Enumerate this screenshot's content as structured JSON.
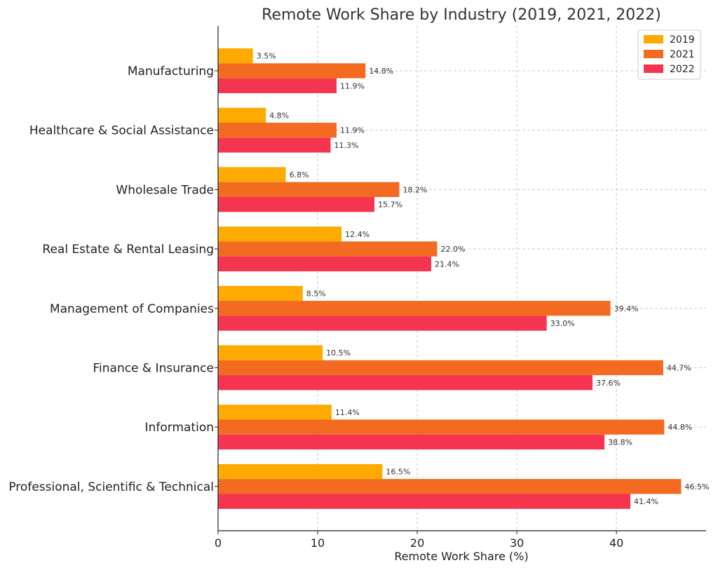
{
  "chart_data": {
    "type": "bar",
    "orientation": "horizontal",
    "title": "Remote Work Share by Industry (2019, 2021, 2022)",
    "xlabel": "Remote Work Share (%)",
    "ylabel": "",
    "xlim": [
      0,
      49
    ],
    "xticks": [
      "0",
      "10",
      "20",
      "30",
      "40"
    ],
    "grid": true,
    "legend_position": "top-right",
    "categories": [
      "Manufacturing",
      "Healthcare & Social Assistance",
      "Wholesale Trade",
      "Real Estate & Rental Leasing",
      "Management of Companies",
      "Finance & Insurance",
      "Information",
      "Professional, Scientific & Technical"
    ],
    "series": [
      {
        "name": "2019",
        "color": "#FFAA00",
        "values": [
          3.5,
          4.8,
          6.8,
          12.4,
          8.5,
          10.5,
          11.4,
          16.5
        ],
        "labels": [
          "3.5%",
          "4.8%",
          "6.8%",
          "12.4%",
          "8.5%",
          "10.5%",
          "11.4%",
          "16.5%"
        ]
      },
      {
        "name": "2021",
        "color": "#F26B21",
        "values": [
          14.8,
          11.9,
          18.2,
          22.0,
          39.4,
          44.7,
          44.8,
          46.5
        ],
        "labels": [
          "14.8%",
          "11.9%",
          "18.2%",
          "22.0%",
          "39.4%",
          "44.7%",
          "44.8%",
          "46.5%"
        ]
      },
      {
        "name": "2022",
        "color": "#F5344F",
        "values": [
          11.9,
          11.3,
          15.7,
          21.4,
          33.0,
          37.6,
          38.8,
          41.4
        ],
        "labels": [
          "11.9%",
          "11.3%",
          "15.7%",
          "21.4%",
          "33.0%",
          "37.6%",
          "38.8%",
          "41.4%"
        ]
      }
    ]
  }
}
